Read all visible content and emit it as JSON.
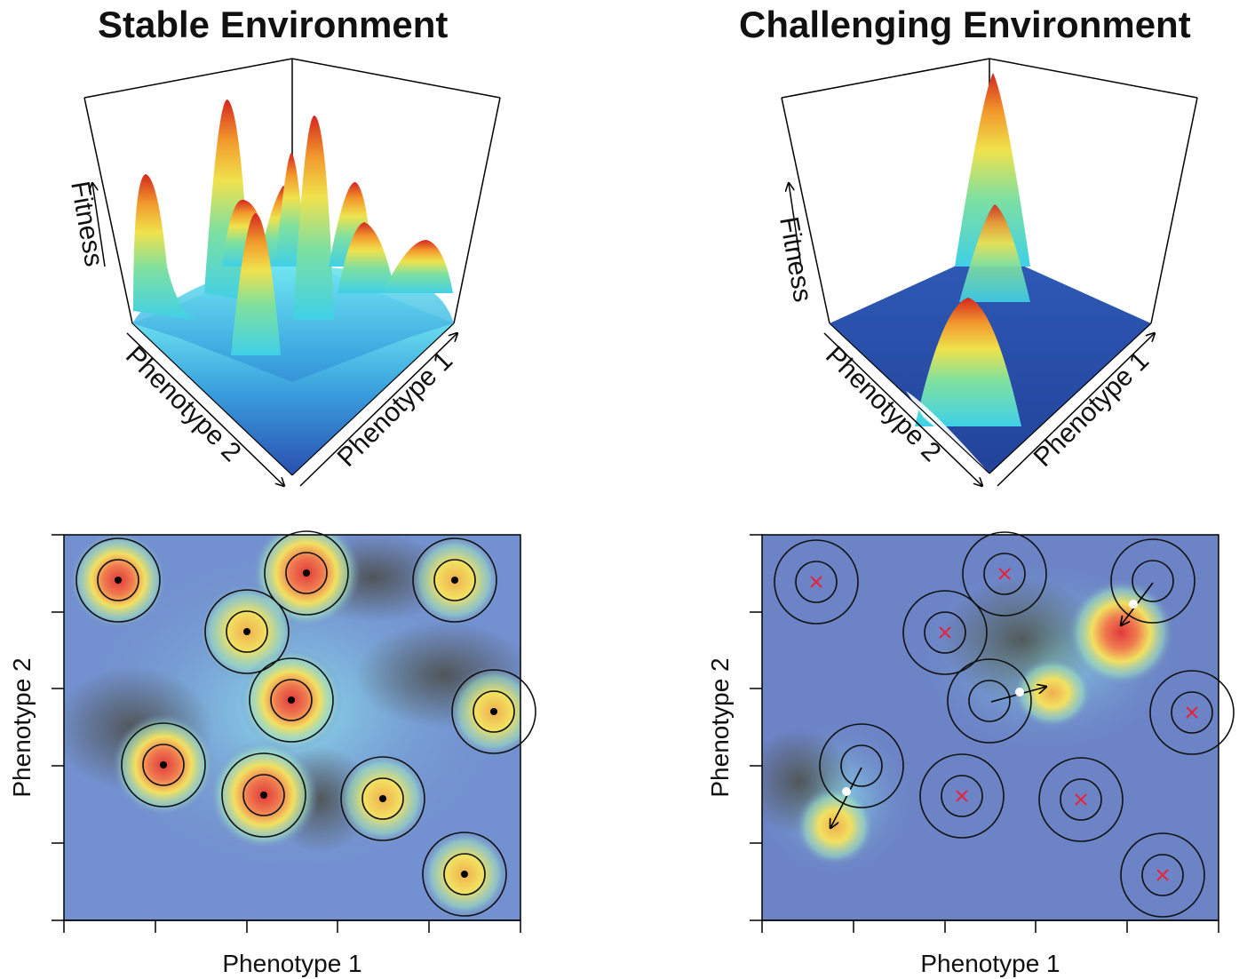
{
  "panels": {
    "stable": {
      "title": "Stable Environment",
      "surface": {
        "z_axis_label": "Fitness",
        "x_axis_label": "Phenotype 1",
        "y_axis_label": "Phenotype 2"
      },
      "map": {
        "x_axis_label": "Phenotype 1",
        "y_axis_label": "Phenotype 2"
      }
    },
    "challenging": {
      "title": "Challenging Environment",
      "surface": {
        "z_axis_label": "Fitness",
        "x_axis_label": "Phenotype 1",
        "y_axis_label": "Phenotype 2"
      },
      "map": {
        "x_axis_label": "Phenotype 1",
        "y_axis_label": "Phenotype 2"
      }
    }
  },
  "colors": {
    "background_field": "#6f86c8",
    "peak_high": "#d7302a",
    "peak_mid": "#f2e35a",
    "peak_low": "#4fd2e6",
    "surface_base": "#2c56b0",
    "marker_dot": "#000000",
    "marker_cross": "#e8223a",
    "moved_point": "#ffffff"
  }
}
